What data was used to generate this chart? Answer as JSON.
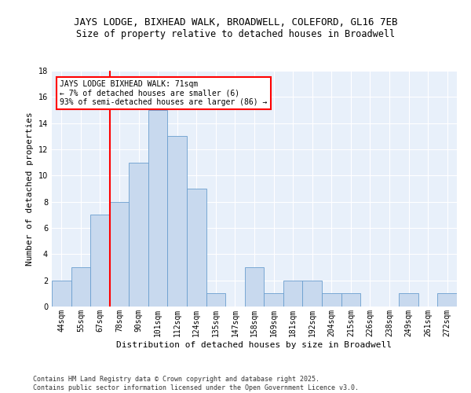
{
  "title": "JAYS LODGE, BIXHEAD WALK, BROADWELL, COLEFORD, GL16 7EB",
  "subtitle": "Size of property relative to detached houses in Broadwell",
  "xlabel": "Distribution of detached houses by size in Broadwell",
  "ylabel": "Number of detached properties",
  "bar_color": "#c8d9ee",
  "bar_edge_color": "#6a9ecf",
  "background_color": "#e8f0fa",
  "grid_color": "white",
  "categories": [
    "44sqm",
    "55sqm",
    "67sqm",
    "78sqm",
    "90sqm",
    "101sqm",
    "112sqm",
    "124sqm",
    "135sqm",
    "147sqm",
    "158sqm",
    "169sqm",
    "181sqm",
    "192sqm",
    "204sqm",
    "215sqm",
    "226sqm",
    "238sqm",
    "249sqm",
    "261sqm",
    "272sqm"
  ],
  "values": [
    2,
    3,
    7,
    8,
    11,
    15,
    13,
    9,
    1,
    0,
    3,
    1,
    2,
    2,
    1,
    1,
    0,
    0,
    1,
    0,
    1
  ],
  "red_line_index": 2,
  "annotation_text": "JAYS LODGE BIXHEAD WALK: 71sqm\n← 7% of detached houses are smaller (6)\n93% of semi-detached houses are larger (86) →",
  "annotation_box_color": "white",
  "annotation_box_edge_color": "red",
  "ylim": [
    0,
    18
  ],
  "yticks": [
    0,
    2,
    4,
    6,
    8,
    10,
    12,
    14,
    16,
    18
  ],
  "footer": "Contains HM Land Registry data © Crown copyright and database right 2025.\nContains public sector information licensed under the Open Government Licence v3.0.",
  "title_fontsize": 9,
  "subtitle_fontsize": 8.5,
  "xlabel_fontsize": 8,
  "ylabel_fontsize": 8,
  "tick_fontsize": 7,
  "footer_fontsize": 6,
  "annot_fontsize": 7
}
